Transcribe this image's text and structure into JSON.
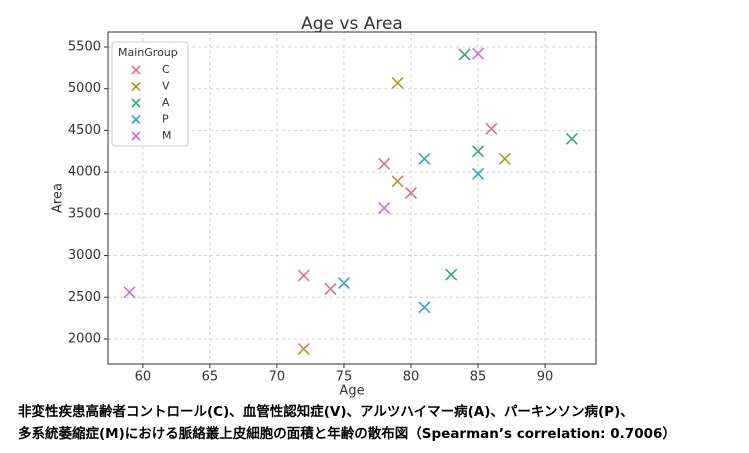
{
  "chart_data": {
    "type": "scatter",
    "title": "Age vs Area",
    "x_label": "Age",
    "y_label": "Area",
    "legend_title": "MainGroup",
    "legend_position": "upper left",
    "grid": true,
    "xlim": [
      57.4,
      93.8
    ],
    "xticks": [
      60,
      65,
      70,
      75,
      80,
      85,
      90
    ],
    "ylim": [
      1700,
      5680
    ],
    "yticks": [
      2000,
      2500,
      3000,
      3500,
      4000,
      4500,
      5000,
      5500
    ],
    "series": [
      {
        "name": "C",
        "color": "#e0708a",
        "x": [
          72,
          74,
          78,
          80,
          86
        ],
        "values": [
          2760,
          2600,
          4100,
          3750,
          4520
        ]
      },
      {
        "name": "V",
        "color": "#b0982e",
        "x": [
          72,
          79,
          79,
          87
        ],
        "values": [
          1880,
          5070,
          3890,
          4160
        ]
      },
      {
        "name": "A",
        "color": "#32a87e",
        "x": [
          84,
          85,
          83,
          92
        ],
        "values": [
          5410,
          4250,
          2770,
          4400
        ]
      },
      {
        "name": "P",
        "color": "#3aa6c6",
        "x": [
          81,
          85,
          75,
          81
        ],
        "values": [
          4160,
          3980,
          2670,
          2380
        ]
      },
      {
        "name": "M",
        "color": "#c872e2",
        "x": [
          85,
          78,
          59
        ],
        "values": [
          5420,
          3570,
          2560
        ]
      }
    ],
    "caption": [
      "非変性疾患高齢者コントロール(C)、血管性認知症(V)、アルツハイマー病(A)、パーキンソン病(P)、",
      "多系統萎縮症(M)における脈絡叢上皮細胞の面積と年齢の散布図（Spearman’s correlation: 0.7006）"
    ]
  }
}
